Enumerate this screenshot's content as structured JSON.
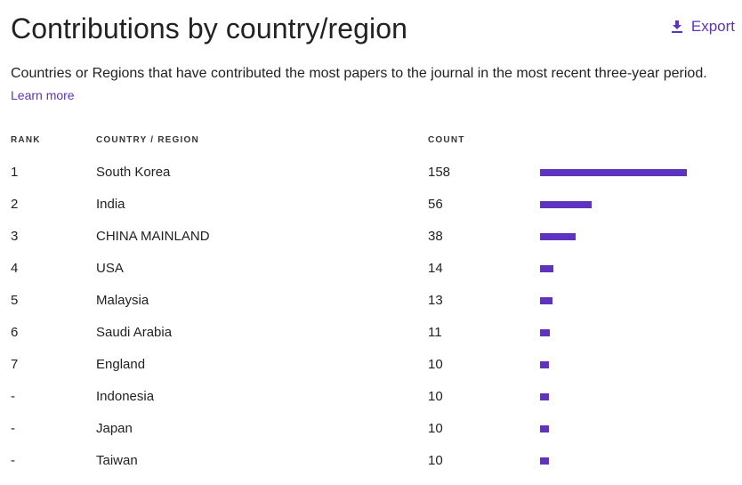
{
  "header": {
    "title": "Contributions by country/region",
    "export_label": "Export",
    "export_icon": "download-icon"
  },
  "description": {
    "text": "Countries or Regions that have contributed the most papers to the journal in the most recent three-year period.",
    "link_label": "Learn more"
  },
  "table": {
    "columns": [
      "RANK",
      "COUNTRY / REGION",
      "COUNT"
    ],
    "accent_color": "#5e33bf",
    "max_count": 158,
    "rows": [
      {
        "rank": "1",
        "country": "South Korea",
        "count": 158
      },
      {
        "rank": "2",
        "country": "India",
        "count": 56
      },
      {
        "rank": "3",
        "country": "CHINA MAINLAND",
        "count": 38
      },
      {
        "rank": "4",
        "country": "USA",
        "count": 14
      },
      {
        "rank": "5",
        "country": "Malaysia",
        "count": 13
      },
      {
        "rank": "6",
        "country": "Saudi Arabia",
        "count": 11
      },
      {
        "rank": "7",
        "country": "England",
        "count": 10
      },
      {
        "rank": "-",
        "country": "Indonesia",
        "count": 10
      },
      {
        "rank": "-",
        "country": "Japan",
        "count": 10
      },
      {
        "rank": "-",
        "country": "Taiwan",
        "count": 10
      }
    ]
  }
}
